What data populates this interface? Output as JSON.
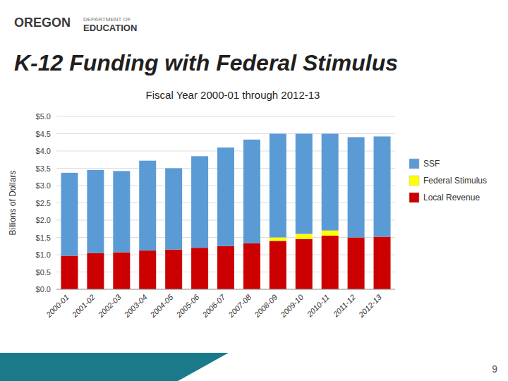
{
  "chart_data": {
    "type": "bar",
    "stacked": true,
    "title": "K-12 Funding with Federal Stimulus",
    "subtitle": "Fiscal Year 2000-01 through 2012-13",
    "ylabel": "Billions of Dollars",
    "annotations": [
      "OREGON",
      "DEPARTMENT OF",
      "EDUCATION",
      "9"
    ],
    "categories": [
      "2000-01",
      "2001-02",
      "2002-03",
      "2003-04",
      "2004-05",
      "2005-06",
      "2006-07",
      "2007-08",
      "2008-09",
      "2009-10",
      "2010-11",
      "2011-12",
      "2012-13"
    ],
    "series": [
      {
        "name": "Local Revenue",
        "color": "#cc0000",
        "values": [
          0.97,
          1.05,
          1.07,
          1.12,
          1.15,
          1.2,
          1.25,
          1.33,
          1.4,
          1.45,
          1.55,
          1.5,
          1.52
        ]
      },
      {
        "name": "Federal Stimulus",
        "color": "#ffff00",
        "values": [
          0.0,
          0.0,
          0.0,
          0.0,
          0.0,
          0.0,
          0.0,
          0.0,
          0.1,
          0.15,
          0.15,
          0.0,
          0.0
        ]
      },
      {
        "name": "SSF",
        "color": "#5b9bd5",
        "values": [
          2.4,
          2.4,
          2.35,
          2.6,
          2.35,
          2.65,
          2.85,
          3.0,
          3.0,
          2.9,
          2.8,
          2.9,
          2.9
        ]
      }
    ],
    "ylim": [
      0,
      5.0
    ],
    "yticks": [
      {
        "value": 0.0,
        "label": "$0.0"
      },
      {
        "value": 0.5,
        "label": "$0.5"
      },
      {
        "value": 1.0,
        "label": "$1.0"
      },
      {
        "value": 1.5,
        "label": "$1.5"
      },
      {
        "value": 2.0,
        "label": "$2.0"
      },
      {
        "value": 2.5,
        "label": "$2.5"
      },
      {
        "value": 3.0,
        "label": "$3.0"
      },
      {
        "value": 3.5,
        "label": "$3.5"
      },
      {
        "value": 4.0,
        "label": "$4.0"
      },
      {
        "value": 4.5,
        "label": "$4.5"
      },
      {
        "value": 5.0,
        "label": "$5.0"
      }
    ],
    "grid": true,
    "legend": "right"
  }
}
